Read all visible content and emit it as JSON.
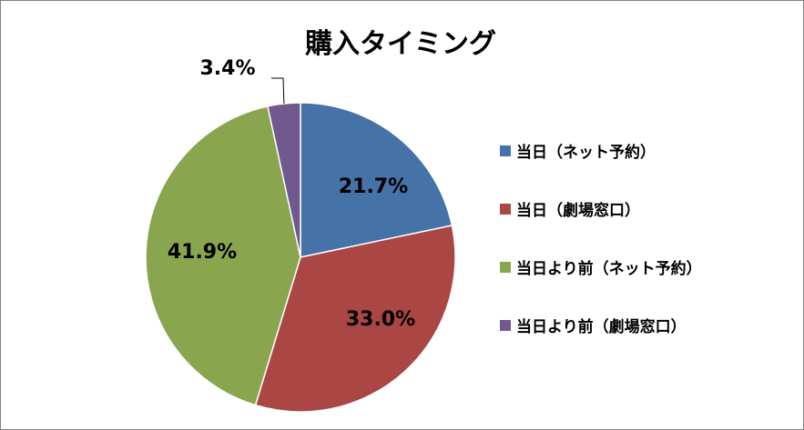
{
  "chart_data": {
    "type": "pie",
    "title": "購入タイミング",
    "categories": [
      "当日（ネット予約）",
      "当日（劇場窓口）",
      "当日より前（ネット予約）",
      "当日より前（劇場窓口）"
    ],
    "values": [
      21.7,
      33.0,
      41.9,
      3.4
    ],
    "data_labels": [
      "21.7%",
      "33.0%",
      "41.9%",
      "3.4%"
    ],
    "colors": [
      "#4572A7",
      "#AA4643",
      "#89A54E",
      "#71588F"
    ],
    "legend_position": "right",
    "start_angle": "top, clockwise"
  }
}
